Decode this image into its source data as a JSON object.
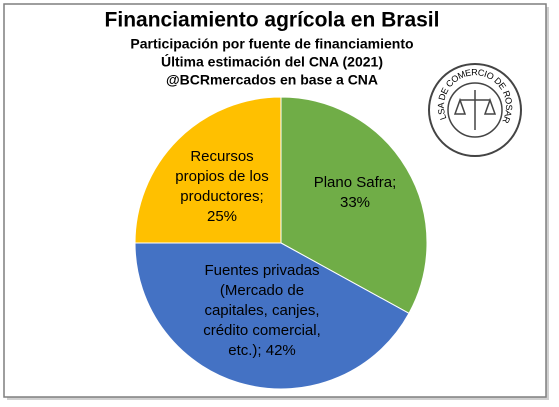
{
  "chart_data": {
    "type": "pie",
    "title": "Financiamiento agrícola en Brasil",
    "subtitle": [
      "Participación por fuente de financiamiento",
      "Última estimación del CNA (2021)",
      "@BCRmercados en base a CNA"
    ],
    "values": [
      33,
      42,
      25
    ],
    "value_labels": [
      [
        "Plano Safra;",
        "33%"
      ],
      [
        "Fuentes privadas",
        "(Mercado de",
        "capitales, canjes,",
        "crédito comercial,",
        "etc.); 42%"
      ],
      [
        "Recursos",
        "propios de los",
        "productores;",
        "25%"
      ]
    ],
    "colors": [
      "#70ad47",
      "#4472c4",
      "#ffc000"
    ],
    "logo": "BOLSA DE COMERCIO DE ROSARIO"
  }
}
